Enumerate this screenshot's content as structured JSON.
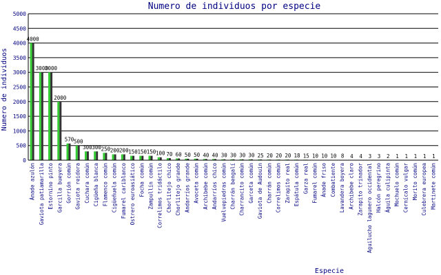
{
  "chart_data": {
    "type": "bar",
    "title": "Numero de individuos por especie",
    "xlabel": "Especie",
    "ylabel": "Numero de individuos",
    "ylim": [
      0,
      5000
    ],
    "yticks": [
      "0",
      "500",
      "1000",
      "1500",
      "2000",
      "2500",
      "3000",
      "3500",
      "4000",
      "4500",
      "5000"
    ],
    "grid": true,
    "bar_color": "#33cc33",
    "shadow_color": "#333333",
    "categories": [
      "Ánade azulón",
      "Gaviota patiamarilla",
      "Estornino pinto",
      "Garcilla bueyera",
      "Gorrión común",
      "Gaviota reidora",
      "Cuchara común",
      "Cigüeña blanca",
      "Flamenco común",
      "Cigüeñuela común",
      "Fumarel cariblanco",
      "Ostrero euroasiático",
      "Focha común",
      "Zampullín común",
      "Correlimos tridáctilo",
      "Chorlitejo chico",
      "Chorlitejo grande",
      "Andarríos grande",
      "Avoceta común",
      "Archibebe común",
      "Andarríos chico",
      "Vuelvepiedras común",
      "Charrán bengalí",
      "Charrancito común",
      "Garceta común",
      "Gaviota de Audouin",
      "Charrán común",
      "Correlimos común",
      "Zarapito real",
      "Espátula común",
      "Garza real",
      "Fumarel común",
      "Ánade friso",
      "Combatiente",
      "Lavandera boyera",
      "Archibebe claro",
      "Zarapito trinador",
      "Aguilucho lagunero occidental",
      "Halcón peregrino",
      "Águila culipinta",
      "Mochuelo común",
      "Cernícalo vulgar",
      "Morito común",
      "Culebrera europea",
      "Martinete común"
    ],
    "values": [
      4000,
      3000,
      3000,
      2000,
      570,
      500,
      300,
      300,
      250,
      200,
      200,
      150,
      150,
      150,
      100,
      70,
      60,
      50,
      50,
      40,
      40,
      30,
      30,
      30,
      30,
      25,
      20,
      20,
      20,
      18,
      15,
      10,
      10,
      10,
      8,
      4,
      4,
      3,
      3,
      2,
      1,
      1,
      1,
      1,
      1
    ],
    "value_labels": [
      "4000",
      "3000",
      "3000",
      "2000",
      "570",
      "500",
      "300",
      "300",
      "250",
      "200",
      "200",
      "150",
      "150",
      "150",
      "100",
      "70",
      "60",
      "50",
      "50",
      "40",
      "40",
      "30",
      "30",
      "30",
      "30",
      "25",
      "20",
      "20",
      "20",
      "18",
      "15",
      "10",
      "10",
      "10",
      "8",
      "4",
      "4",
      "3",
      "3",
      "2",
      "1",
      "1",
      "1",
      "1",
      "1"
    ]
  }
}
